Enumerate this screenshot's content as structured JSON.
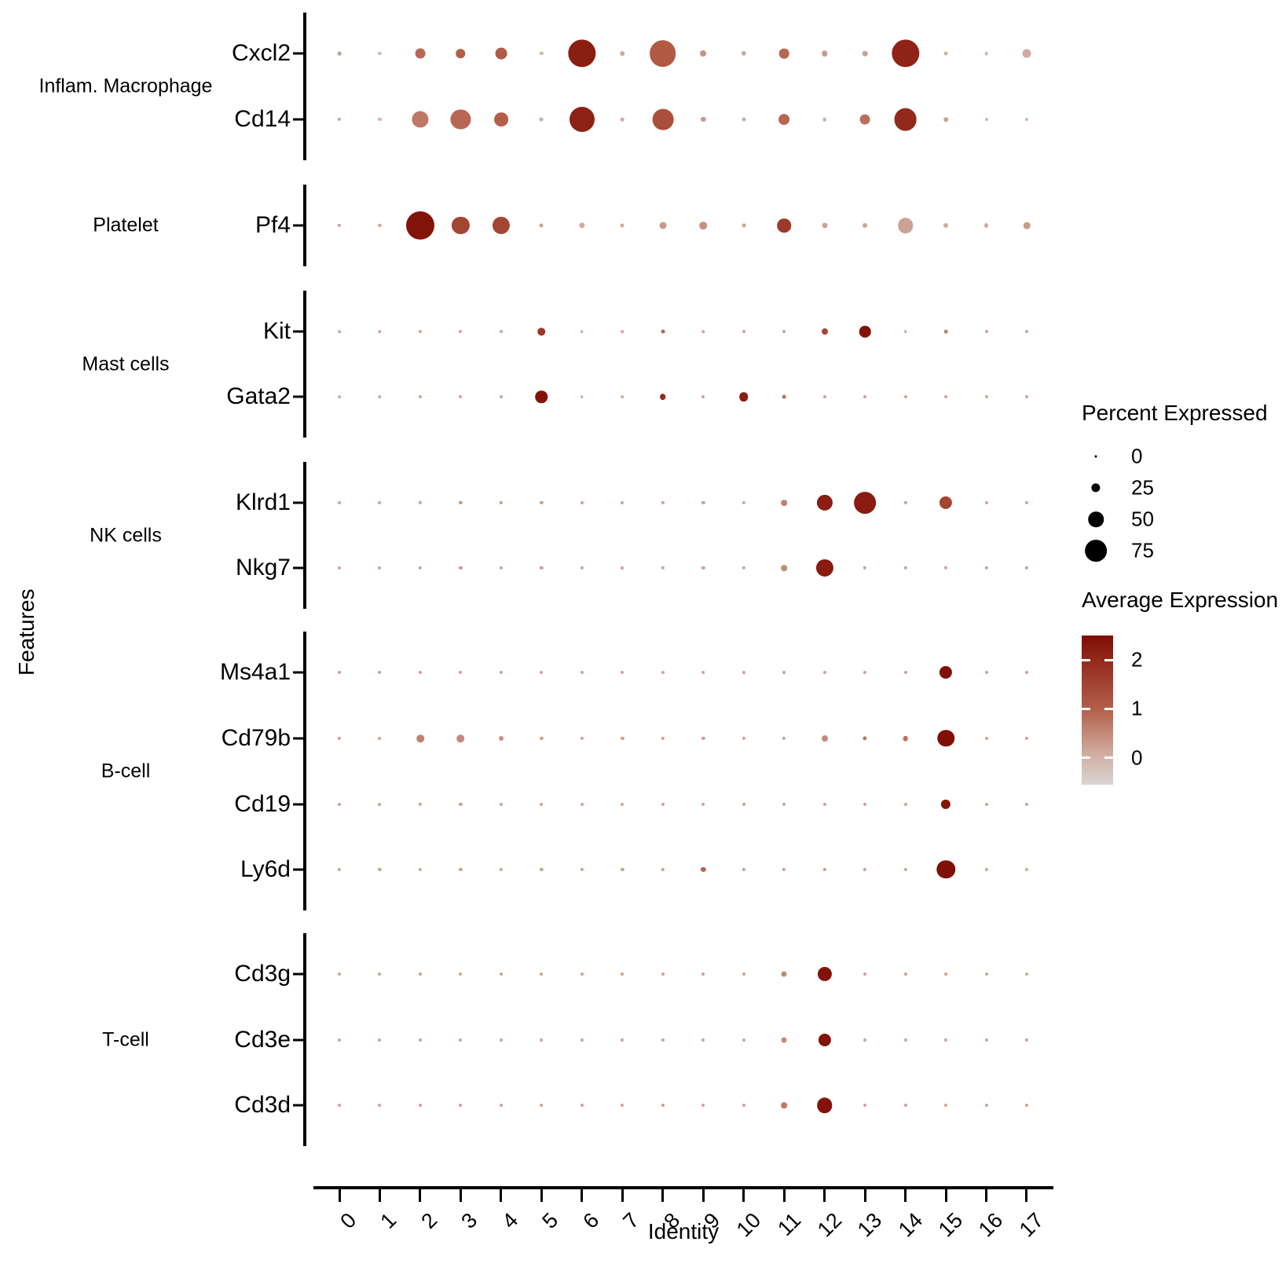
{
  "chart_data": {
    "type": "scatter",
    "subtype": "dot-plot",
    "xlabel": "Identity",
    "ylabel": "Features",
    "x_categories": [
      "0",
      "1",
      "2",
      "3",
      "4",
      "5",
      "6",
      "7",
      "8",
      "9",
      "10",
      "11",
      "12",
      "13",
      "14",
      "15",
      "16",
      "17"
    ],
    "legend": {
      "size_title": "Percent Expressed",
      "size_breaks": [
        0,
        25,
        50,
        75
      ],
      "color_title": "Average Expression",
      "color_tick_values": [
        2,
        1,
        0
      ],
      "color_max_value": 2.5,
      "color_min_value": -0.55,
      "color_scale_stops": [
        {
          "value": 2.5,
          "color": "#7E0D04"
        },
        {
          "value": 2.0,
          "color": "#93291B"
        },
        {
          "value": 1.0,
          "color": "#B45F49"
        },
        {
          "value": 0.0,
          "color": "#D2B3A8"
        },
        {
          "value": -0.55,
          "color": "#DBD5D2"
        }
      ]
    },
    "groups": [
      {
        "name": "Inflam. Macrophage",
        "genes": [
          "Cxcl2",
          "Cd14"
        ]
      },
      {
        "name": "Platelet",
        "genes": [
          "Pf4"
        ]
      },
      {
        "name": "Mast cells",
        "genes": [
          "Kit",
          "Gata2"
        ]
      },
      {
        "name": "NK cells",
        "genes": [
          "Klrd1",
          "Nkg7"
        ]
      },
      {
        "name": "B-cell",
        "genes": [
          "Ms4a1",
          "Cd79b",
          "Cd19",
          "Ly6d"
        ]
      },
      {
        "name": "T-cell",
        "genes": [
          "Cd3g",
          "Cd3e",
          "Cd3d"
        ]
      }
    ],
    "rows": [
      {
        "gene": "Cxcl2",
        "group": "Inflam. Macrophage",
        "percent_expressed": [
          5,
          4,
          30,
          26,
          36,
          4,
          98,
          8,
          93,
          15,
          10,
          29,
          14,
          11,
          98,
          6,
          5,
          24
        ],
        "average_expression": [
          0.3,
          -0.1,
          0.9,
          1.0,
          1.1,
          0.0,
          2.2,
          0.1,
          1.1,
          0.4,
          0.1,
          0.9,
          0.3,
          0.2,
          2.1,
          0.0,
          -0.1,
          0.1
        ]
      },
      {
        "gene": "Cd14",
        "group": "Inflam. Macrophage",
        "percent_expressed": [
          4,
          4,
          55,
          67,
          45,
          6,
          88,
          5,
          72,
          10,
          6,
          33,
          5,
          30,
          78,
          8,
          3,
          3
        ],
        "average_expression": [
          0.2,
          0.0,
          0.7,
          0.9,
          1.0,
          0.1,
          2.15,
          0.1,
          1.3,
          0.3,
          0.1,
          0.9,
          0.1,
          0.8,
          2.0,
          0.2,
          0.0,
          0.0
        ]
      },
      {
        "gene": "Pf4",
        "group": "Platelet",
        "percent_expressed": [
          4,
          4,
          100,
          58,
          58,
          6,
          13,
          6,
          18,
          20,
          6,
          44,
          12,
          9,
          50,
          9,
          9,
          17
        ],
        "average_expression": [
          0.2,
          0.1,
          2.4,
          1.5,
          1.5,
          0.2,
          0.1,
          0.1,
          0.3,
          0.4,
          0.2,
          1.7,
          0.2,
          0.2,
          0.2,
          0.1,
          0.1,
          0.3
        ]
      },
      {
        "gene": "Kit",
        "group": "Mast cells",
        "percent_expressed": [
          2,
          2,
          3,
          3,
          3,
          20,
          2,
          2,
          6,
          2,
          3,
          3,
          15,
          35,
          2,
          5,
          3,
          3
        ],
        "average_expression": [
          0.1,
          0.1,
          0.2,
          0.2,
          0.2,
          1.7,
          0.1,
          0.1,
          0.9,
          0.1,
          0.2,
          0.2,
          1.5,
          2.4,
          0.1,
          0.6,
          0.2,
          0.2
        ]
      },
      {
        "gene": "Gata2",
        "group": "Mast cells",
        "percent_expressed": [
          2,
          2,
          3,
          3,
          3,
          38,
          2,
          2,
          14,
          3,
          26,
          5,
          3,
          3,
          3,
          3,
          3,
          3
        ],
        "average_expression": [
          0.1,
          0.1,
          0.2,
          0.2,
          0.2,
          2.4,
          0.1,
          0.1,
          2.0,
          0.2,
          2.2,
          0.8,
          0.2,
          0.2,
          0.2,
          0.2,
          0.2,
          0.2
        ]
      },
      {
        "gene": "Klrd1",
        "group": "NK cells",
        "percent_expressed": [
          3,
          3,
          4,
          4,
          4,
          4,
          3,
          3,
          4,
          4,
          4,
          14,
          52,
          75,
          4,
          40,
          3,
          4
        ],
        "average_expression": [
          0.2,
          0.2,
          0.2,
          0.3,
          0.3,
          0.2,
          0.2,
          0.2,
          0.2,
          0.2,
          0.2,
          0.6,
          2.2,
          2.25,
          0.2,
          1.5,
          0.2,
          0.2
        ]
      },
      {
        "gene": "Nkg7",
        "group": "NK cells",
        "percent_expressed": [
          3,
          3,
          4,
          4,
          4,
          4,
          4,
          3,
          4,
          4,
          4,
          14,
          58,
          4,
          4,
          4,
          4,
          4
        ],
        "average_expression": [
          0.2,
          0.2,
          0.2,
          0.3,
          0.2,
          0.2,
          0.2,
          0.2,
          0.2,
          0.2,
          0.2,
          0.5,
          2.25,
          0.2,
          0.2,
          0.2,
          0.2,
          0.2
        ]
      },
      {
        "gene": "Ms4a1",
        "group": "B-cell",
        "percent_expressed": [
          3,
          3,
          3,
          3,
          3,
          3,
          3,
          3,
          3,
          3,
          3,
          3,
          3,
          3,
          3,
          40,
          3,
          3
        ],
        "average_expression": [
          0.2,
          0.2,
          0.2,
          0.2,
          0.2,
          0.2,
          0.2,
          0.2,
          0.2,
          0.2,
          0.2,
          0.2,
          0.2,
          0.2,
          0.2,
          2.45,
          0.2,
          0.2
        ]
      },
      {
        "gene": "Cd79b",
        "group": "B-cell",
        "percent_expressed": [
          4,
          3,
          20,
          20,
          9,
          4,
          4,
          4,
          4,
          4,
          4,
          4,
          15,
          7,
          11,
          56,
          3,
          4
        ],
        "average_expression": [
          0.2,
          0.2,
          0.6,
          0.5,
          0.4,
          0.2,
          0.2,
          0.2,
          0.2,
          0.2,
          0.2,
          0.2,
          0.5,
          0.7,
          0.8,
          2.45,
          0.2,
          0.2
        ]
      },
      {
        "gene": "Cd19",
        "group": "B-cell",
        "percent_expressed": [
          3,
          3,
          4,
          4,
          3,
          3,
          3,
          3,
          3,
          3,
          3,
          3,
          3,
          3,
          3,
          28,
          3,
          3
        ],
        "average_expression": [
          0.2,
          0.2,
          0.2,
          0.2,
          0.2,
          0.2,
          0.2,
          0.2,
          0.2,
          0.2,
          0.2,
          0.2,
          0.2,
          0.2,
          0.2,
          2.4,
          0.2,
          0.2
        ]
      },
      {
        "gene": "Ly6d",
        "group": "B-cell",
        "percent_expressed": [
          4,
          4,
          4,
          4,
          4,
          4,
          4,
          4,
          4,
          10,
          4,
          4,
          4,
          4,
          4,
          62,
          4,
          4
        ],
        "average_expression": [
          0.2,
          0.2,
          0.2,
          0.2,
          0.2,
          0.2,
          0.2,
          0.2,
          0.2,
          0.9,
          0.2,
          0.2,
          0.3,
          0.2,
          0.2,
          2.45,
          0.2,
          0.2
        ]
      },
      {
        "gene": "Cd3g",
        "group": "T-cell",
        "percent_expressed": [
          3,
          3,
          3,
          3,
          3,
          3,
          3,
          3,
          3,
          3,
          3,
          12,
          46,
          3,
          3,
          3,
          3,
          3
        ],
        "average_expression": [
          0.2,
          0.2,
          0.2,
          0.2,
          0.2,
          0.2,
          0.2,
          0.2,
          0.2,
          0.2,
          0.2,
          0.5,
          2.4,
          0.2,
          0.2,
          0.2,
          0.2,
          0.2
        ]
      },
      {
        "gene": "Cd3e",
        "group": "T-cell",
        "percent_expressed": [
          3,
          3,
          3,
          3,
          3,
          3,
          3,
          3,
          3,
          3,
          3,
          12,
          40,
          3,
          3,
          4,
          3,
          3
        ],
        "average_expression": [
          0.2,
          0.2,
          0.2,
          0.2,
          0.2,
          0.2,
          0.2,
          0.2,
          0.2,
          0.2,
          0.2,
          0.5,
          2.4,
          0.2,
          0.2,
          0.2,
          0.2,
          0.2
        ]
      },
      {
        "gene": "Cd3d",
        "group": "T-cell",
        "percent_expressed": [
          3,
          3,
          3,
          3,
          3,
          3,
          3,
          3,
          3,
          3,
          3,
          14,
          50,
          3,
          3,
          3,
          3,
          3
        ],
        "average_expression": [
          0.2,
          0.2,
          0.2,
          0.2,
          0.2,
          0.2,
          0.2,
          0.2,
          0.3,
          0.2,
          0.2,
          0.7,
          2.4,
          0.2,
          0.2,
          0.2,
          0.2,
          0.2
        ]
      }
    ]
  }
}
